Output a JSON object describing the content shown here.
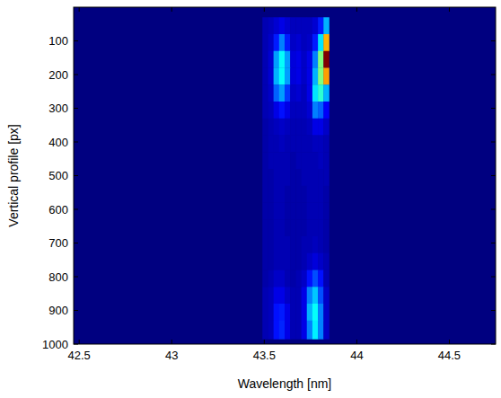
{
  "chart_data": {
    "type": "heatmap",
    "x_label": "Wavelength [nm]",
    "y_label": "Vertical profile [px]",
    "xlim": [
      42.47,
      44.75
    ],
    "ylim": [
      0,
      1000
    ],
    "xticks": [
      {
        "value": 42.5,
        "label": "42.5"
      },
      43,
      {
        "value": 43.5,
        "label": "43.5"
      },
      44,
      {
        "value": 44.5,
        "label": "44.5"
      }
    ],
    "yticks": [
      100,
      200,
      300,
      400,
      500,
      600,
      700,
      800,
      900,
      1000
    ],
    "color_range": [
      0,
      1
    ],
    "x_edges": [
      43.49,
      43.52,
      43.55,
      43.58,
      43.61,
      43.64,
      43.67,
      43.7,
      43.73,
      43.76,
      43.79,
      43.82,
      43.85
    ],
    "y_edges": [
      30,
      80,
      130,
      180,
      230,
      280,
      330,
      380,
      430,
      480,
      530,
      580,
      630,
      680,
      730,
      780,
      830,
      880,
      930,
      985
    ],
    "cells": [
      [
        0.05,
        0.06,
        0.08,
        0.1,
        0.08,
        0.06,
        0.06,
        0.06,
        0.06,
        0.08,
        0.15,
        0.3
      ],
      [
        0.05,
        0.07,
        0.15,
        0.25,
        0.15,
        0.07,
        0.08,
        0.06,
        0.07,
        0.15,
        0.35,
        0.7
      ],
      [
        0.05,
        0.08,
        0.28,
        0.38,
        0.28,
        0.09,
        0.1,
        0.07,
        0.1,
        0.25,
        0.5,
        1.0
      ],
      [
        0.05,
        0.08,
        0.3,
        0.38,
        0.28,
        0.09,
        0.1,
        0.07,
        0.1,
        0.3,
        0.5,
        0.72
      ],
      [
        0.05,
        0.07,
        0.22,
        0.28,
        0.18,
        0.07,
        0.08,
        0.06,
        0.1,
        0.35,
        0.42,
        0.3
      ],
      [
        0.05,
        0.06,
        0.1,
        0.14,
        0.1,
        0.06,
        0.06,
        0.06,
        0.08,
        0.25,
        0.22,
        0.12
      ],
      [
        0.04,
        0.05,
        0.06,
        0.07,
        0.06,
        0.05,
        0.05,
        0.05,
        0.06,
        0.1,
        0.1,
        0.07
      ],
      [
        0.04,
        0.05,
        0.05,
        0.06,
        0.05,
        0.05,
        0.05,
        0.05,
        0.05,
        0.06,
        0.06,
        0.05
      ],
      [
        0.04,
        0.05,
        0.05,
        0.05,
        0.05,
        0.04,
        0.05,
        0.05,
        0.05,
        0.05,
        0.06,
        0.05
      ],
      [
        0.04,
        0.04,
        0.05,
        0.05,
        0.05,
        0.04,
        0.04,
        0.05,
        0.05,
        0.05,
        0.05,
        0.05
      ],
      [
        0.04,
        0.04,
        0.05,
        0.05,
        0.04,
        0.04,
        0.04,
        0.04,
        0.05,
        0.05,
        0.05,
        0.04
      ],
      [
        0.04,
        0.04,
        0.05,
        0.05,
        0.04,
        0.04,
        0.04,
        0.04,
        0.05,
        0.05,
        0.05,
        0.04
      ],
      [
        0.04,
        0.04,
        0.05,
        0.05,
        0.04,
        0.04,
        0.04,
        0.04,
        0.05,
        0.05,
        0.05,
        0.04
      ],
      [
        0.04,
        0.04,
        0.05,
        0.05,
        0.05,
        0.04,
        0.04,
        0.05,
        0.05,
        0.06,
        0.05,
        0.04
      ],
      [
        0.04,
        0.04,
        0.05,
        0.05,
        0.05,
        0.04,
        0.04,
        0.05,
        0.07,
        0.09,
        0.07,
        0.05
      ],
      [
        0.04,
        0.05,
        0.07,
        0.07,
        0.05,
        0.04,
        0.05,
        0.07,
        0.14,
        0.2,
        0.14,
        0.05
      ],
      [
        0.05,
        0.06,
        0.1,
        0.1,
        0.07,
        0.05,
        0.05,
        0.1,
        0.25,
        0.32,
        0.2,
        0.07
      ],
      [
        0.05,
        0.06,
        0.14,
        0.15,
        0.1,
        0.05,
        0.05,
        0.1,
        0.3,
        0.38,
        0.25,
        0.07
      ],
      [
        0.05,
        0.06,
        0.14,
        0.16,
        0.1,
        0.05,
        0.05,
        0.1,
        0.25,
        0.36,
        0.25,
        0.07
      ]
    ]
  }
}
